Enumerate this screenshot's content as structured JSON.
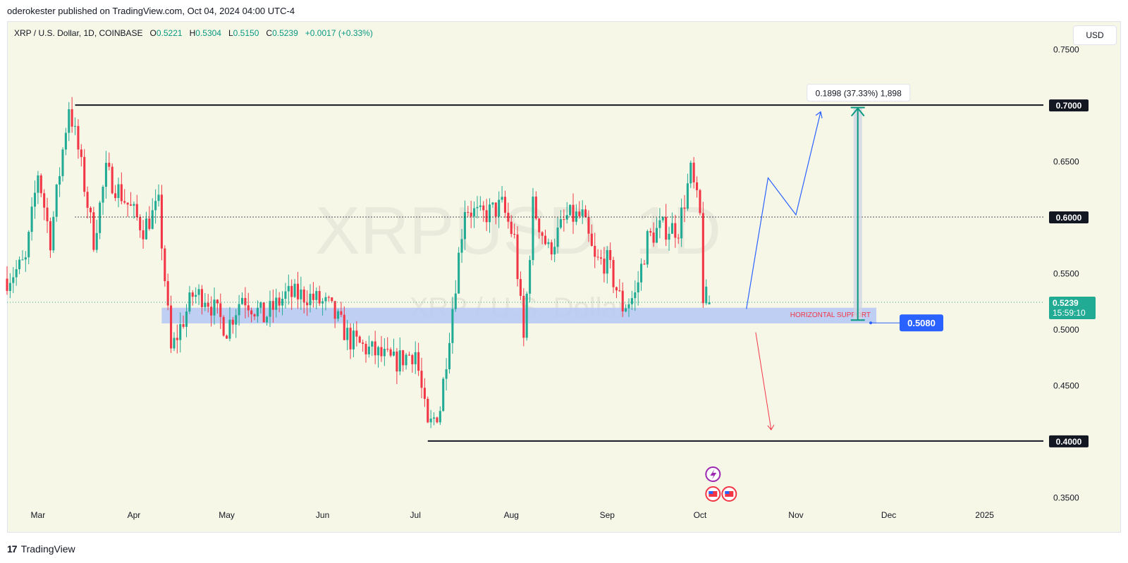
{
  "header": {
    "publisher_line": "oderokester published on TradingView.com, Oct 04, 2024 04:00 UTC-4"
  },
  "legend": {
    "symbol": "XRP / U.S. Dollar, 1D, COINBASE",
    "o_label": "O",
    "o_val": "0.5221",
    "h_label": "H",
    "h_val": "0.5304",
    "l_label": "L",
    "l_val": "0.5150",
    "c_label": "C",
    "c_val": "0.5239",
    "change": "+0.0017 (+0.33%)"
  },
  "currency_button": "USD",
  "watermark": {
    "symbol": "XRPUSD, 1D",
    "name": "XRP / U.S. Dollar"
  },
  "footer": {
    "brand": "TradingView",
    "logo": "tradingview-logo-icon"
  },
  "colors": {
    "up": "#22ab94",
    "down": "#f23645",
    "background": "#f7f7e8",
    "support_zone": "#b4c8f5",
    "projection": "#2962ff",
    "measure": "#089981"
  },
  "chart_data": {
    "type": "candlestick",
    "symbol": "XRPUSD",
    "interval": "1D",
    "ylim": [
      0.325,
      0.775
    ],
    "y_ticks": [
      "0.7500",
      "0.6500",
      "0.5500",
      "0.5000",
      "0.4500",
      "0.3500"
    ],
    "x_ticks": [
      "Mar",
      "Apr",
      "May",
      "Jun",
      "Jul",
      "Aug",
      "Sep",
      "Oct",
      "Nov",
      "Dec",
      "2025"
    ],
    "x_range": [
      "2024-02-20",
      "2025-01-20"
    ],
    "price_path": [
      [
        "2024-02-20",
        0.545
      ],
      [
        "2024-02-26",
        0.56
      ],
      [
        "2024-03-01",
        0.64
      ],
      [
        "2024-03-05",
        0.58
      ],
      [
        "2024-03-11",
        0.7
      ],
      [
        "2024-03-14",
        0.66
      ],
      [
        "2024-03-19",
        0.58
      ],
      [
        "2024-03-23",
        0.64
      ],
      [
        "2024-03-28",
        0.62
      ],
      [
        "2024-04-04",
        0.59
      ],
      [
        "2024-04-09",
        0.61
      ],
      [
        "2024-04-13",
        0.48
      ],
      [
        "2024-04-20",
        0.53
      ],
      [
        "2024-04-24",
        0.53
      ],
      [
        "2024-05-01",
        0.5
      ],
      [
        "2024-05-06",
        0.53
      ],
      [
        "2024-05-13",
        0.51
      ],
      [
        "2024-05-20",
        0.53
      ],
      [
        "2024-05-27",
        0.53
      ],
      [
        "2024-06-03",
        0.52
      ],
      [
        "2024-06-10",
        0.49
      ],
      [
        "2024-06-17",
        0.48
      ],
      [
        "2024-06-24",
        0.47
      ],
      [
        "2024-07-01",
        0.48
      ],
      [
        "2024-07-05",
        0.41
      ],
      [
        "2024-07-09",
        0.43
      ],
      [
        "2024-07-13",
        0.52
      ],
      [
        "2024-07-17",
        0.61
      ],
      [
        "2024-07-22",
        0.6
      ],
      [
        "2024-07-29",
        0.61
      ],
      [
        "2024-08-02",
        0.58
      ],
      [
        "2024-08-05",
        0.49
      ],
      [
        "2024-08-08",
        0.61
      ],
      [
        "2024-08-13",
        0.57
      ],
      [
        "2024-08-19",
        0.6
      ],
      [
        "2024-08-24",
        0.6
      ],
      [
        "2024-08-28",
        0.56
      ],
      [
        "2024-09-01",
        0.56
      ],
      [
        "2024-09-06",
        0.52
      ],
      [
        "2024-09-10",
        0.53
      ],
      [
        "2024-09-14",
        0.58
      ],
      [
        "2024-09-18",
        0.59
      ],
      [
        "2024-09-24",
        0.59
      ],
      [
        "2024-09-28",
        0.64
      ],
      [
        "2024-10-01",
        0.6
      ],
      [
        "2024-10-02",
        0.53
      ],
      [
        "2024-10-04",
        0.5239
      ]
    ],
    "last_price": {
      "value": 0.5239,
      "label": "0.5239",
      "countdown": "15:59:10"
    },
    "horizontal_lines": [
      {
        "value": 0.7,
        "label": "0.7000",
        "style": "solid",
        "from": "2024-03-13"
      },
      {
        "value": 0.6,
        "label": "0.6000",
        "style": "dotted",
        "from": "2024-03-13"
      },
      {
        "value": 0.4,
        "label": "0.4000",
        "style": "solid",
        "from": "2024-07-05"
      }
    ],
    "support_zone": {
      "y_top": 0.519,
      "y_bottom": 0.505,
      "x_start": "2024-04-10",
      "x_end": "2024-11-27",
      "label": "HORIZONTAL SUPPORT",
      "tag": "0.5080"
    },
    "measure": {
      "from": 0.508,
      "to": 0.6978,
      "date": "2024-11-21",
      "label": "0.1898 (37.33%) 1,898"
    },
    "projection_up": [
      [
        "2024-10-16",
        0.518
      ],
      [
        "2024-10-23",
        0.635
      ],
      [
        "2024-11-01",
        0.602
      ],
      [
        "2024-11-09",
        0.694
      ]
    ],
    "projection_down": [
      [
        "2024-10-19",
        0.497
      ],
      [
        "2024-10-24",
        0.41
      ]
    ],
    "event_icons": [
      "flash-icon",
      "us-flag-icon",
      "us-flag-icon"
    ]
  }
}
